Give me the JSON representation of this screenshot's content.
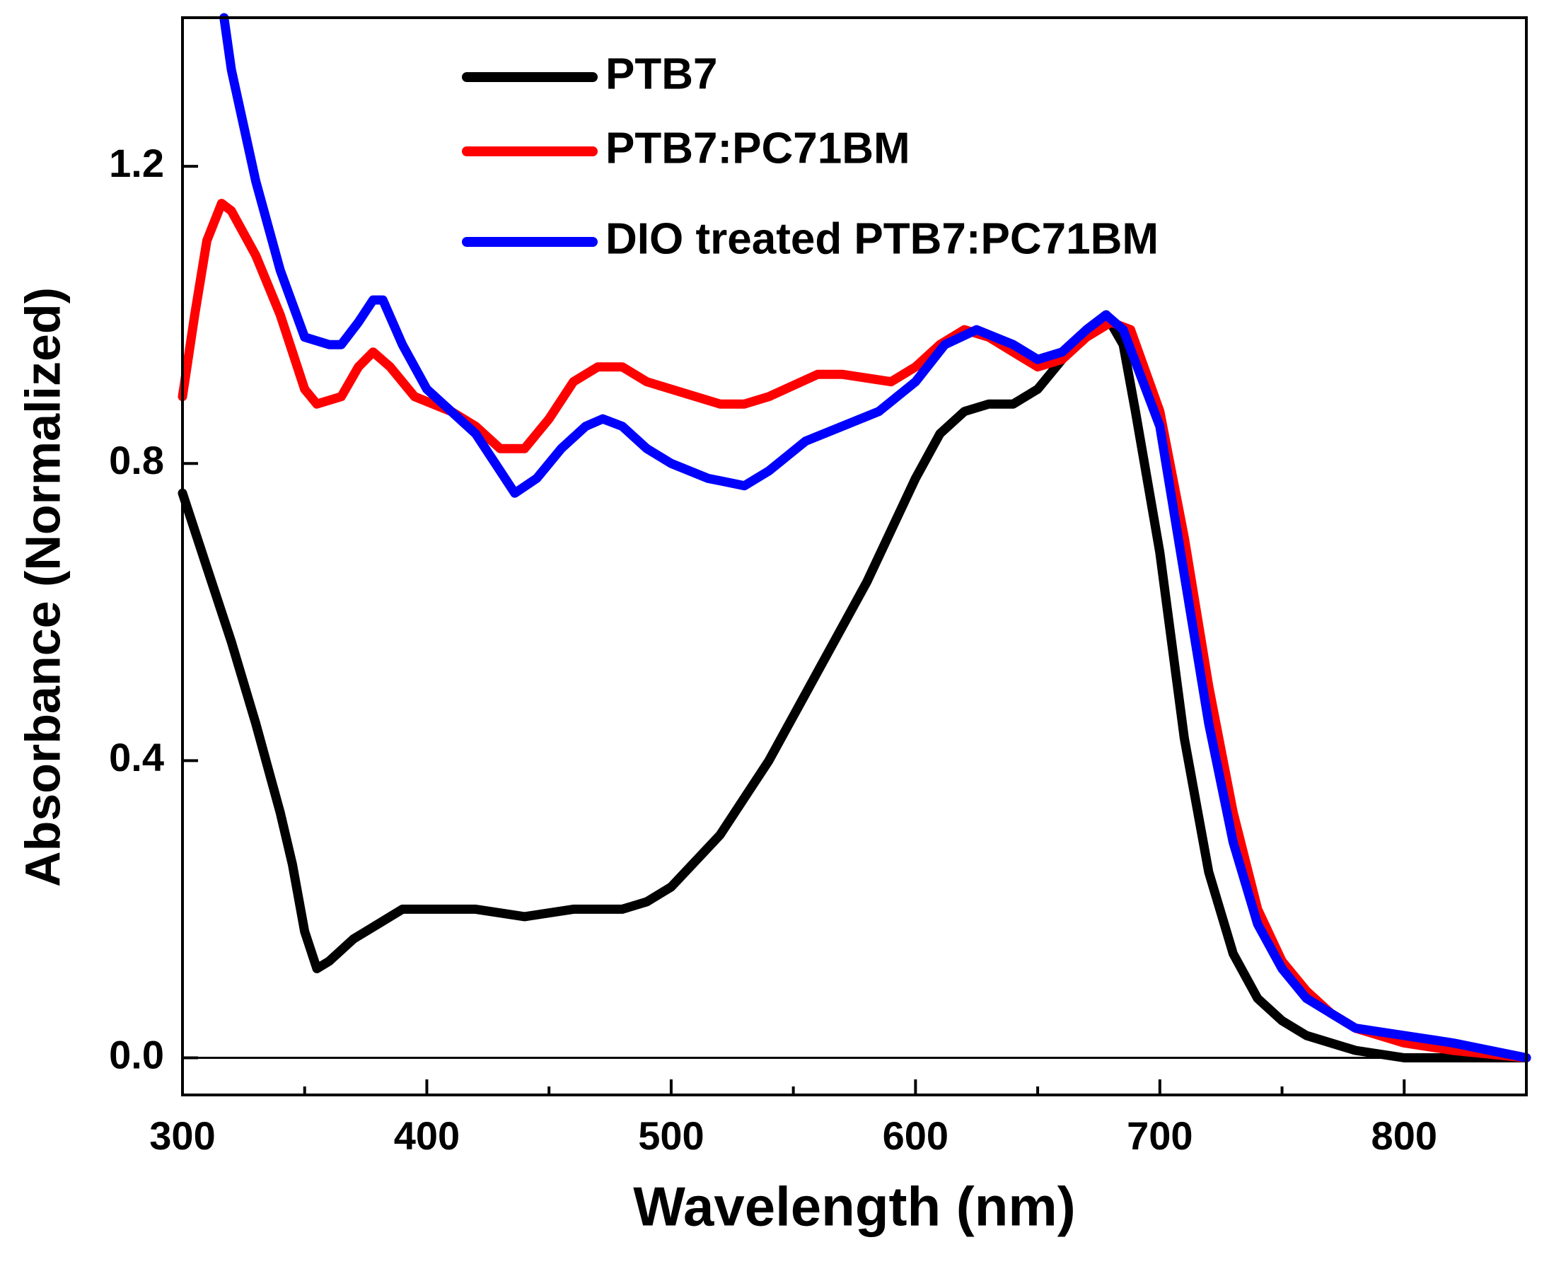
{
  "chart_data": {
    "type": "line",
    "x_label": "Wavelength (nm)",
    "y_label": "Absorbance (Normalized)",
    "xlim": [
      300,
      850
    ],
    "ylim": [
      -0.05,
      1.4
    ],
    "xticks": [
      300,
      400,
      500,
      600,
      700,
      800
    ],
    "xminorticks": [
      350,
      450,
      550,
      650,
      750
    ],
    "yticks": [
      {
        "value": 0,
        "label": "0.0"
      },
      0.4,
      0.8,
      1.2
    ],
    "zero_line": true,
    "legend": "upper left",
    "series": [
      {
        "name": "PTB7",
        "color": "#000000",
        "x": [
          300,
          310,
          320,
          330,
          340,
          345,
          350,
          355,
          360,
          370,
          380,
          390,
          400,
          420,
          440,
          460,
          480,
          490,
          500,
          520,
          540,
          560,
          580,
          600,
          610,
          620,
          630,
          640,
          650,
          660,
          670,
          678,
          685,
          690,
          700,
          710,
          720,
          730,
          740,
          750,
          760,
          770,
          780,
          800,
          820,
          850
        ],
        "values": [
          0.76,
          0.66,
          0.56,
          0.45,
          0.33,
          0.26,
          0.17,
          0.12,
          0.13,
          0.16,
          0.18,
          0.2,
          0.2,
          0.2,
          0.19,
          0.2,
          0.2,
          0.21,
          0.23,
          0.3,
          0.4,
          0.52,
          0.64,
          0.78,
          0.84,
          0.87,
          0.88,
          0.88,
          0.9,
          0.94,
          0.98,
          1.0,
          0.96,
          0.87,
          0.68,
          0.43,
          0.25,
          0.14,
          0.08,
          0.05,
          0.03,
          0.02,
          0.01,
          0.0,
          0.0,
          0.0
        ]
      },
      {
        "name": "PTB7:PC71BM",
        "color": "#ff0000",
        "x": [
          300,
          305,
          310,
          316,
          320,
          330,
          340,
          350,
          355,
          365,
          372,
          378,
          385,
          395,
          410,
          420,
          430,
          440,
          450,
          460,
          470,
          480,
          490,
          500,
          520,
          530,
          540,
          560,
          570,
          590,
          600,
          610,
          620,
          630,
          640,
          650,
          660,
          670,
          680,
          688,
          700,
          710,
          720,
          730,
          740,
          750,
          760,
          770,
          780,
          800,
          820,
          850
        ],
        "values": [
          0.89,
          1.0,
          1.1,
          1.15,
          1.14,
          1.08,
          1.0,
          0.9,
          0.88,
          0.89,
          0.93,
          0.95,
          0.93,
          0.89,
          0.87,
          0.85,
          0.82,
          0.82,
          0.86,
          0.91,
          0.93,
          0.93,
          0.91,
          0.9,
          0.88,
          0.88,
          0.89,
          0.92,
          0.92,
          0.91,
          0.93,
          0.96,
          0.98,
          0.97,
          0.95,
          0.93,
          0.94,
          0.97,
          0.99,
          0.98,
          0.87,
          0.7,
          0.5,
          0.33,
          0.2,
          0.13,
          0.09,
          0.06,
          0.04,
          0.02,
          0.01,
          0.0
        ]
      },
      {
        "name": "DIO treated PTB7:PC71BM",
        "color": "#0000ff",
        "x": [
          317,
          320,
          330,
          340,
          350,
          360,
          365,
          372,
          378,
          382,
          390,
          400,
          420,
          430,
          436,
          445,
          455,
          465,
          472,
          480,
          490,
          500,
          515,
          530,
          540,
          555,
          570,
          585,
          600,
          612,
          625,
          640,
          650,
          660,
          670,
          678,
          685,
          700,
          710,
          720,
          730,
          740,
          750,
          760,
          770,
          780,
          800,
          820,
          850
        ],
        "values": [
          1.4,
          1.33,
          1.18,
          1.06,
          0.97,
          0.96,
          0.96,
          0.99,
          1.02,
          1.02,
          0.96,
          0.9,
          0.84,
          0.79,
          0.76,
          0.78,
          0.82,
          0.85,
          0.86,
          0.85,
          0.82,
          0.8,
          0.78,
          0.77,
          0.79,
          0.83,
          0.85,
          0.87,
          0.91,
          0.96,
          0.98,
          0.96,
          0.94,
          0.95,
          0.98,
          1.0,
          0.98,
          0.85,
          0.65,
          0.45,
          0.29,
          0.18,
          0.12,
          0.08,
          0.06,
          0.04,
          0.03,
          0.02,
          0.0
        ]
      }
    ]
  }
}
